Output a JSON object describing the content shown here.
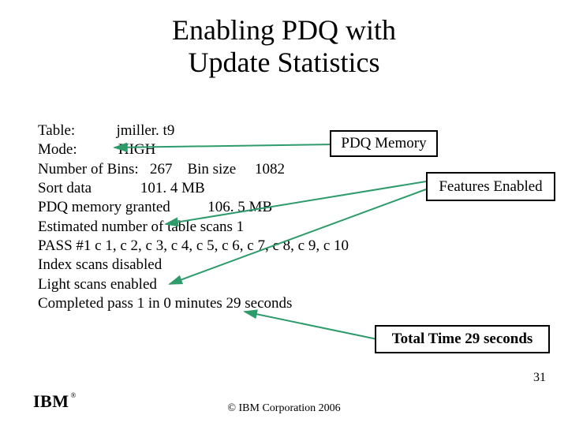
{
  "title_line1": "Enabling PDQ with",
  "title_line2": "Update Statistics",
  "lines": [
    "Table:           jmiller. t9",
    "Mode:           HIGH",
    "Number of Bins:   267    Bin size     1082",
    "Sort data             101. 4 MB",
    "PDQ memory granted          106. 5 MB",
    "Estimated number of table scans 1",
    "PASS #1 c 1, c 2, c 3, c 4, c 5, c 6, c 7, c 8, c 9, c 10",
    "Index scans disabled",
    "Light scans enabled",
    "Completed pass 1 in 0 minutes 29 seconds"
  ],
  "callouts": {
    "pdq": "PDQ Memory",
    "features": "Features Enabled",
    "total": "Total Time 29 seconds"
  },
  "page_number": "31",
  "footer": "© IBM Corporation 2006",
  "logo_text": "IBM",
  "logo_reg": "®",
  "style": {
    "title_fontsize": 36,
    "body_fontsize": 19,
    "arrow_color": "#2e9b6b",
    "arrow_stroke_width": 2,
    "box_border_color": "#000000",
    "background": "#ffffff"
  },
  "arrows": [
    {
      "from": [
        425,
        183
      ],
      "to": [
        145,
        187
      ]
    },
    {
      "from": [
        540,
        230
      ],
      "to": [
        210,
        284
      ]
    },
    {
      "from": [
        540,
        240
      ],
      "to": [
        215,
        360
      ]
    },
    {
      "from": [
        478,
        430
      ],
      "to": [
        310,
        395
      ]
    }
  ]
}
